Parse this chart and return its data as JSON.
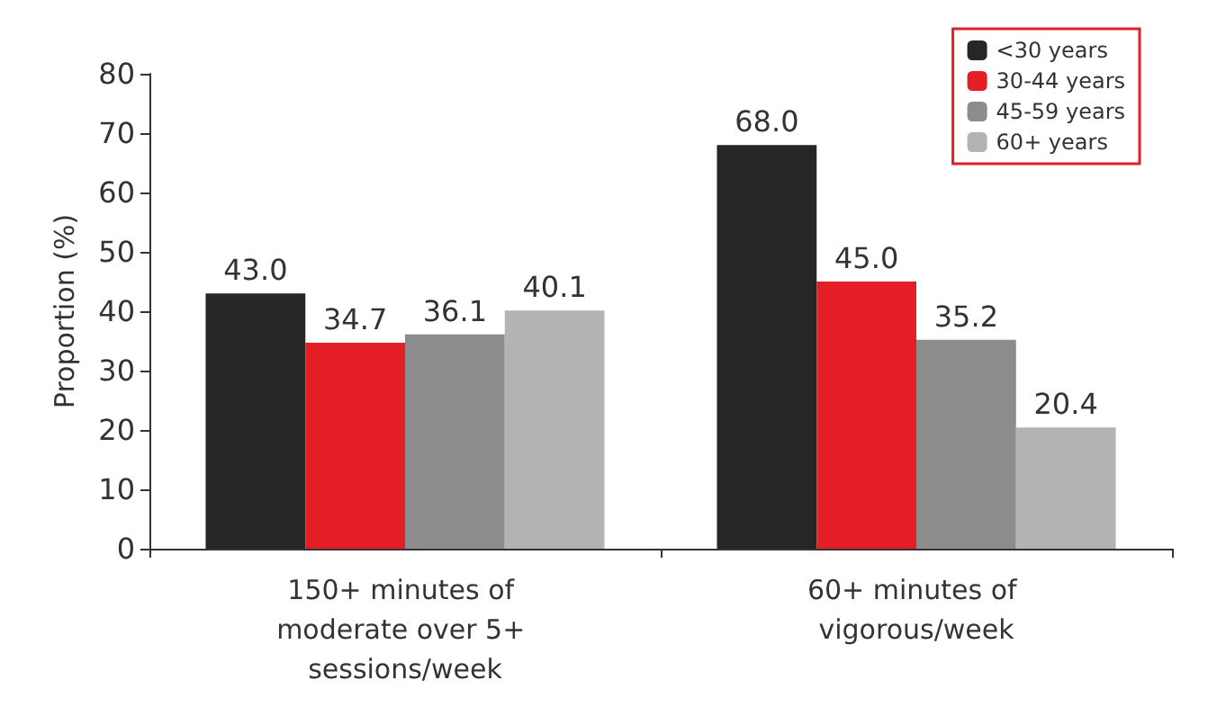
{
  "chart_data": {
    "type": "bar",
    "ylabel": "Proportion (%)",
    "categories": [
      "150+ minutes of moderate over 5+ sessions/week",
      "60+ minutes of vigorous/week"
    ],
    "series": [
      {
        "name": "<30 years",
        "color": "#262626",
        "values": [
          43.0,
          68.0
        ],
        "value_labels": [
          "43.0",
          "68.0"
        ]
      },
      {
        "name": "30-44 years",
        "color": "#e31e24",
        "values": [
          34.7,
          45.0
        ],
        "value_labels": [
          "34.7",
          "45.0"
        ]
      },
      {
        "name": "45-59 years",
        "color": "#8c8c8c",
        "values": [
          36.1,
          35.2
        ],
        "value_labels": [
          "36.1",
          "35.2"
        ]
      },
      {
        "name": "60+ years",
        "color": "#b3b3b3",
        "values": [
          40.1,
          20.4
        ],
        "value_labels": [
          "40.1",
          "20.4"
        ]
      }
    ],
    "ylim": [
      0,
      80
    ],
    "yticks": [
      0,
      10,
      20,
      30,
      40,
      50,
      60,
      70,
      80
    ],
    "grid": false,
    "legend": "top right"
  }
}
